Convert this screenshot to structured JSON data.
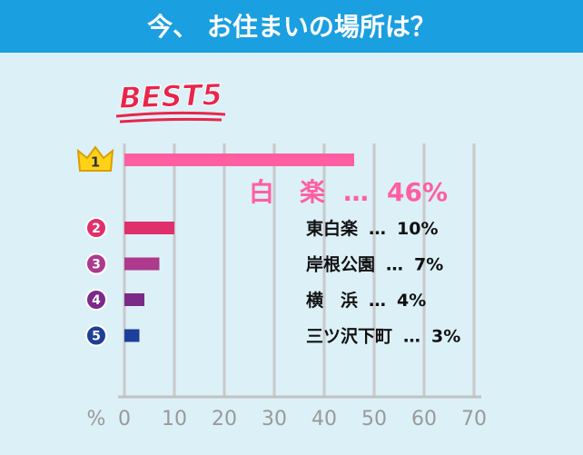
{
  "chart_data": {
    "type": "bar",
    "orientation": "horizontal",
    "title": "今、 お住まいの場所は？",
    "badge": "BEST5",
    "categories": [
      "白　楽",
      "東白楽",
      "岸根公園",
      "横　浜",
      "三ツ沢下町"
    ],
    "ranks": [
      "1",
      "2",
      "3",
      "4",
      "5"
    ],
    "values": [
      46,
      10,
      7,
      4,
      3
    ],
    "value_labels": [
      "46%",
      "10%",
      "7%",
      "4%",
      "3%"
    ],
    "separator": "…",
    "colors": [
      "#ff5fa2",
      "#e0306c",
      "#ad3a8c",
      "#7b2a88",
      "#1d3f99"
    ],
    "xlabel": "%",
    "xlim": [
      0,
      70
    ],
    "xticks": [
      0,
      10,
      20,
      30,
      40,
      50,
      60,
      70
    ],
    "grid": true
  }
}
